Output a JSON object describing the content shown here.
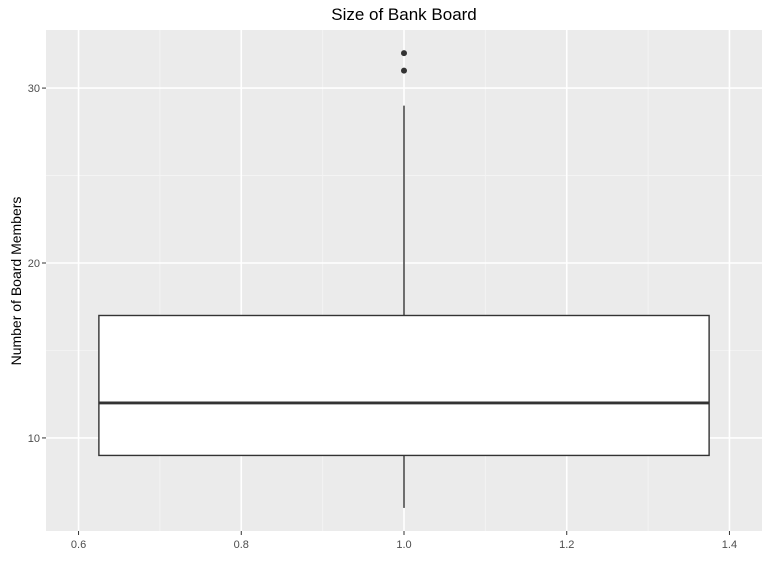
{
  "chart_data": {
    "type": "boxplot",
    "title": "Size of Bank Board",
    "xlabel": "",
    "ylabel": "Number of Board Members",
    "x_ticks": [
      "0.6",
      "0.8",
      "1.0",
      "1.2",
      "1.4"
    ],
    "y_ticks": [
      "10",
      "20",
      "30"
    ],
    "xlim": [
      0.6,
      1.4
    ],
    "ylim": [
      5,
      33
    ],
    "box": {
      "x": 1.0,
      "width": 0.75,
      "whisker_low": 6,
      "q1": 9,
      "median": 12,
      "q3": 17,
      "whisker_high": 29,
      "outliers": [
        31,
        32
      ]
    },
    "grid": true,
    "legend": "none"
  }
}
